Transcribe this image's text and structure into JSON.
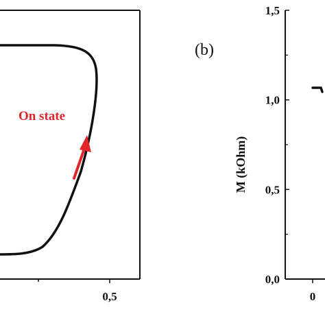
{
  "chart_data": [
    {
      "type": "line",
      "panel_label": "",
      "x_tick_labels": [
        "0,5"
      ],
      "annotation": {
        "text": "On state",
        "color": "#e0262b"
      },
      "arrow_color": "#e0262b",
      "line_color": "#111111",
      "series": [
        {
          "x": [
            -0.4,
            -0.1,
            0.2,
            0.38,
            0.44,
            0.44,
            0.41,
            0.35,
            0.2,
            -0.1,
            -0.4
          ],
          "y": [
            1.0,
            1.0,
            0.99,
            0.9,
            0.75,
            0.6,
            0.45,
            0.28,
            0.1,
            0.02,
            0.02
          ]
        }
      ],
      "xlim": [
        -0.5,
        0.55
      ]
    },
    {
      "type": "line",
      "panel_label": "(b)",
      "ylabel": "M (kOhm)",
      "y_tick_labels": [
        "0,0",
        "0,5",
        "1,0",
        "1,5"
      ],
      "x_tick_labels": [
        "0"
      ],
      "ylim": [
        0,
        1.5
      ],
      "line_color": "#111111",
      "series": [
        {
          "x": [
            0,
            0.1
          ],
          "y": [
            1.07,
            1.07
          ]
        }
      ]
    }
  ]
}
